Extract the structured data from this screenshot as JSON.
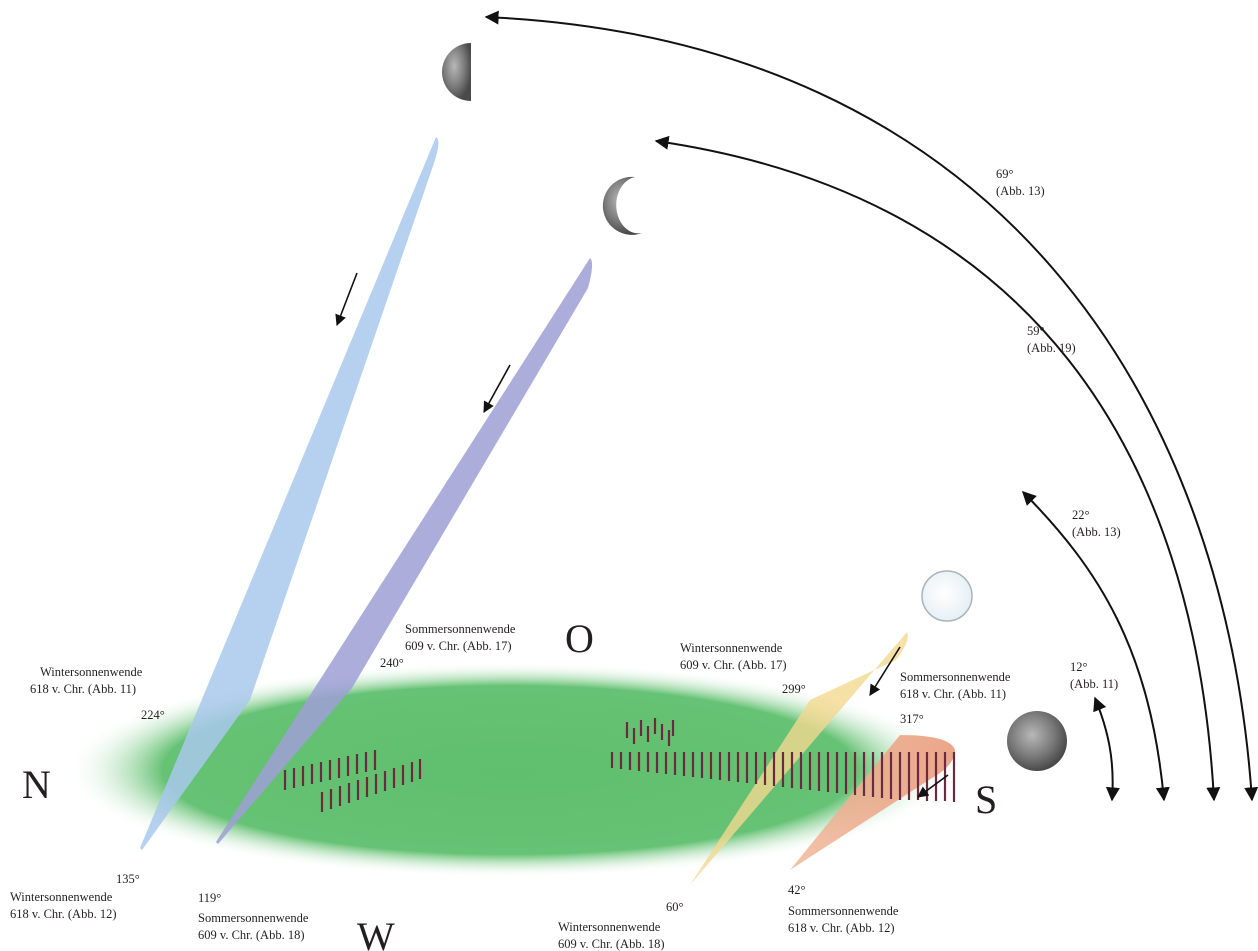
{
  "cardinals": {
    "north": "N",
    "east": "O",
    "south": "S",
    "west": "W"
  },
  "colors": {
    "ground": "#5fbf6e",
    "beam_blue": "#a9c8ec",
    "beam_purple": "#9f9fd6",
    "beam_yellow": "#f3d890",
    "beam_salmon": "#eea98c",
    "posts": "#6b2a3f",
    "arrows": "#111111"
  },
  "icons": [
    "half-moon-icon",
    "crescent-moon-icon",
    "full-moon-pale-icon",
    "full-moon-icon"
  ],
  "azimuths": {
    "a224": {
      "deg": "224°",
      "line1": "Wintersonnenwende",
      "line2": "618 v. Chr. (Abb. 11)"
    },
    "a240": {
      "deg": "240°",
      "line1": "Sommersonnenwende",
      "line2": "609 v. Chr. (Abb. 17)"
    },
    "a299": {
      "deg": "299°",
      "line1": "Wintersonnenwende",
      "line2": "609 v. Chr. (Abb. 17)"
    },
    "a317": {
      "deg": "317°",
      "line1": "Sommersonnenwende",
      "line2": "618 v. Chr. (Abb. 11)"
    },
    "a135": {
      "deg": "135°",
      "line1": "Wintersonnenwende",
      "line2": "618 v. Chr. (Abb. 12)"
    },
    "a119": {
      "deg": "119°",
      "line1": "Sommersonnenwende",
      "line2": "609 v. Chr. (Abb. 18)"
    },
    "a60": {
      "deg": "60°",
      "line1": "Wintersonnenwende",
      "line2": "609 v. Chr. (Abb. 18)"
    },
    "a42": {
      "deg": "42°",
      "line1": "Sommersonnenwende",
      "line2": "618 v. Chr. (Abb. 12)"
    }
  },
  "altitudes": {
    "h69": {
      "deg": "69°",
      "ref": "(Abb. 13)"
    },
    "h59": {
      "deg": "59°",
      "ref": "(Abb. 19)"
    },
    "h22": {
      "deg": "22°",
      "ref": "(Abb. 13)"
    },
    "h12": {
      "deg": "12°",
      "ref": "(Abb. 11)"
    }
  }
}
